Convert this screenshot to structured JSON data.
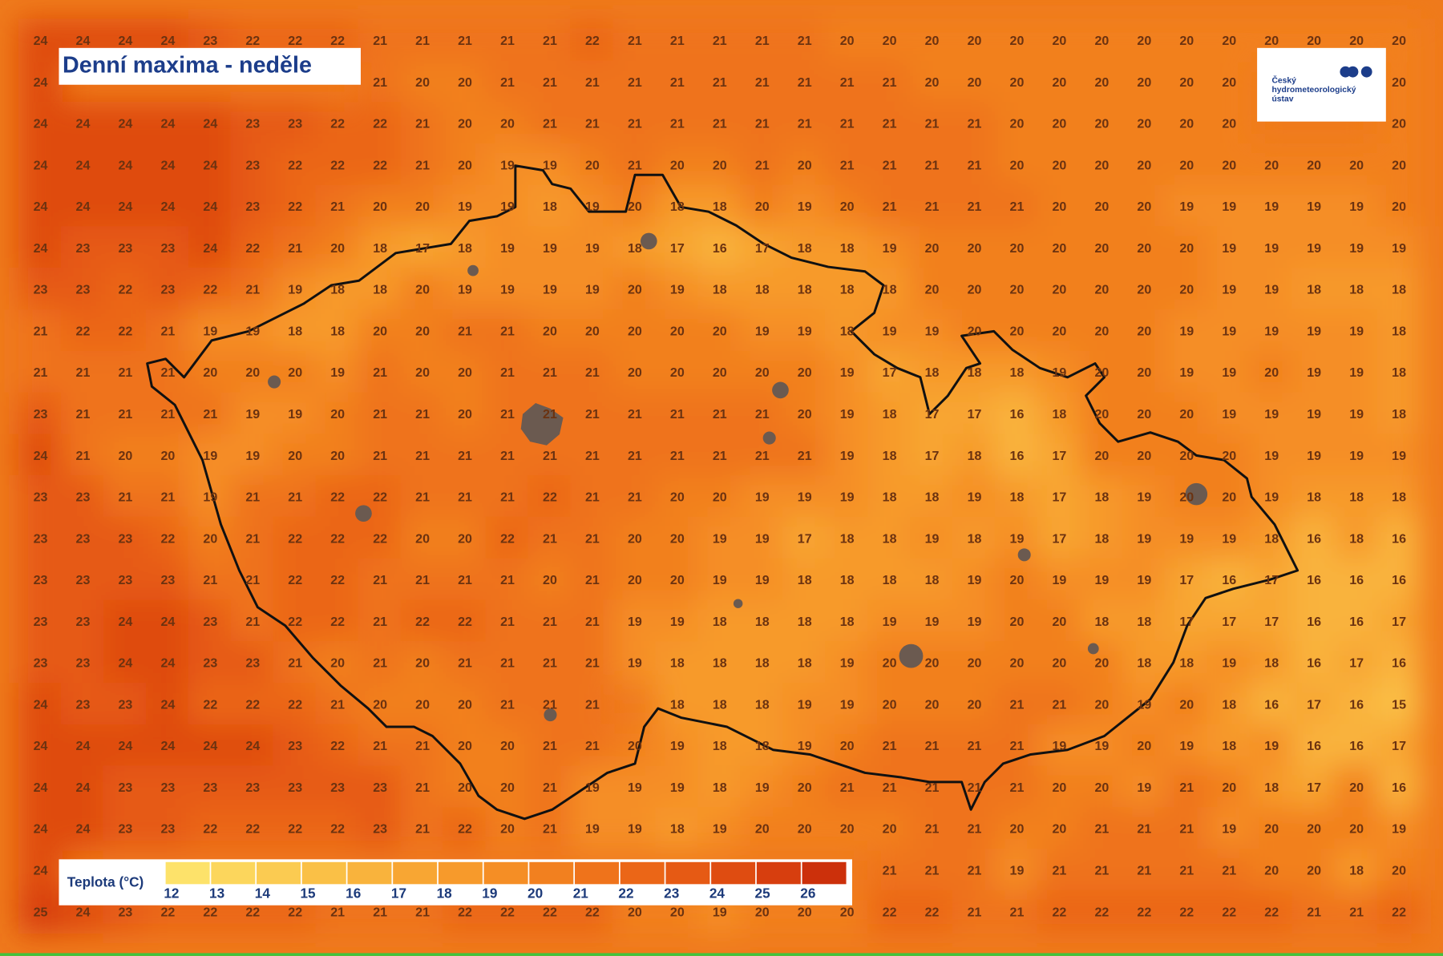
{
  "header": {
    "title": "Denní maxima - neděle"
  },
  "logo": {
    "lines": [
      "Český",
      "hydrometeorologický",
      "ústav"
    ]
  },
  "legend": {
    "label": "Teplota (°C)",
    "ticks": [
      12,
      13,
      14,
      15,
      16,
      17,
      18,
      19,
      20,
      21,
      22,
      23,
      24,
      25,
      26
    ],
    "colors": [
      "#fde26a",
      "#fcd65c",
      "#fbcb51",
      "#fac046",
      "#f9b33c",
      "#f8a633",
      "#f79a2b",
      "#f58e25",
      "#f2801f",
      "#ef731b",
      "#eb6617",
      "#e65a14",
      "#df4c11",
      "#d73e0e",
      "#cc300b"
    ]
  },
  "grid": {
    "rows": [
      [
        24,
        24,
        24,
        24,
        23,
        22,
        22,
        22,
        21,
        21,
        21,
        21,
        21,
        22,
        21,
        21,
        21,
        21,
        21,
        20,
        20,
        20,
        20,
        20,
        20,
        20,
        20,
        20,
        20,
        20,
        20,
        20,
        20
      ],
      [
        24,
        null,
        null,
        null,
        null,
        null,
        null,
        null,
        21,
        20,
        20,
        21,
        21,
        21,
        21,
        21,
        21,
        21,
        21,
        21,
        21,
        20,
        20,
        20,
        20,
        20,
        20,
        20,
        20,
        null,
        null,
        null,
        20
      ],
      [
        24,
        24,
        24,
        24,
        24,
        23,
        23,
        22,
        22,
        21,
        20,
        20,
        21,
        21,
        21,
        21,
        21,
        21,
        21,
        21,
        21,
        21,
        21,
        20,
        20,
        20,
        20,
        20,
        20,
        null,
        null,
        null,
        20
      ],
      [
        24,
        24,
        24,
        24,
        24,
        23,
        22,
        22,
        22,
        21,
        20,
        19,
        19,
        20,
        21,
        20,
        20,
        21,
        20,
        21,
        21,
        21,
        21,
        20,
        20,
        20,
        20,
        20,
        20,
        20,
        20,
        20,
        20
      ],
      [
        24,
        24,
        24,
        24,
        24,
        23,
        22,
        21,
        20,
        20,
        19,
        19,
        18,
        19,
        20,
        18,
        18,
        20,
        19,
        20,
        21,
        21,
        21,
        21,
        20,
        20,
        20,
        19,
        19,
        19,
        19,
        19,
        20
      ],
      [
        24,
        23,
        23,
        23,
        24,
        22,
        21,
        20,
        18,
        17,
        18,
        19,
        19,
        19,
        18,
        17,
        16,
        17,
        18,
        18,
        19,
        20,
        20,
        20,
        20,
        20,
        20,
        20,
        19,
        19,
        19,
        19,
        19
      ],
      [
        23,
        23,
        22,
        23,
        22,
        21,
        19,
        18,
        18,
        20,
        19,
        19,
        19,
        19,
        20,
        19,
        18,
        18,
        18,
        18,
        18,
        20,
        20,
        20,
        20,
        20,
        20,
        20,
        19,
        19,
        18,
        18,
        18
      ],
      [
        21,
        22,
        22,
        21,
        19,
        19,
        18,
        18,
        20,
        20,
        21,
        21,
        20,
        20,
        20,
        20,
        20,
        19,
        19,
        18,
        19,
        19,
        20,
        20,
        20,
        20,
        20,
        19,
        19,
        19,
        19,
        19,
        18
      ],
      [
        21,
        21,
        21,
        21,
        20,
        20,
        20,
        19,
        21,
        20,
        20,
        21,
        21,
        21,
        20,
        20,
        20,
        20,
        20,
        19,
        17,
        18,
        18,
        18,
        19,
        20,
        20,
        19,
        19,
        20,
        19,
        19,
        18
      ],
      [
        23,
        21,
        21,
        21,
        21,
        19,
        19,
        20,
        21,
        21,
        20,
        21,
        21,
        21,
        21,
        21,
        21,
        21,
        20,
        19,
        18,
        17,
        17,
        16,
        18,
        20,
        20,
        20,
        19,
        19,
        19,
        19,
        18
      ],
      [
        24,
        21,
        20,
        20,
        19,
        19,
        20,
        20,
        21,
        21,
        21,
        21,
        21,
        21,
        21,
        21,
        21,
        21,
        21,
        19,
        18,
        17,
        18,
        16,
        17,
        20,
        20,
        20,
        20,
        19,
        19,
        19,
        19
      ],
      [
        23,
        23,
        21,
        21,
        19,
        21,
        21,
        22,
        22,
        21,
        21,
        21,
        22,
        21,
        21,
        20,
        20,
        19,
        19,
        19,
        18,
        18,
        19,
        18,
        17,
        18,
        19,
        20,
        20,
        19,
        18,
        18,
        18
      ],
      [
        23,
        23,
        23,
        22,
        20,
        21,
        22,
        22,
        22,
        20,
        20,
        22,
        21,
        21,
        20,
        20,
        19,
        19,
        17,
        18,
        18,
        19,
        18,
        19,
        17,
        18,
        19,
        19,
        19,
        18,
        16,
        18,
        16
      ],
      [
        23,
        23,
        23,
        23,
        21,
        21,
        22,
        22,
        21,
        21,
        21,
        21,
        20,
        21,
        20,
        20,
        19,
        19,
        18,
        18,
        18,
        18,
        19,
        20,
        19,
        19,
        19,
        17,
        16,
        17,
        16,
        16,
        16
      ],
      [
        23,
        23,
        24,
        24,
        23,
        21,
        22,
        22,
        21,
        22,
        22,
        21,
        21,
        21,
        19,
        19,
        18,
        18,
        18,
        18,
        19,
        19,
        19,
        20,
        20,
        18,
        18,
        17,
        17,
        17,
        16,
        16,
        17
      ],
      [
        23,
        23,
        24,
        24,
        23,
        23,
        21,
        20,
        21,
        20,
        21,
        21,
        21,
        21,
        19,
        18,
        18,
        18,
        18,
        19,
        20,
        20,
        20,
        20,
        20,
        20,
        18,
        18,
        19,
        18,
        16,
        17,
        16
      ],
      [
        24,
        23,
        23,
        24,
        22,
        22,
        22,
        21,
        20,
        20,
        20,
        21,
        21,
        21,
        null,
        18,
        18,
        18,
        19,
        19,
        20,
        20,
        20,
        21,
        21,
        20,
        19,
        20,
        18,
        16,
        17,
        16,
        15
      ],
      [
        24,
        24,
        24,
        24,
        24,
        24,
        23,
        22,
        21,
        21,
        20,
        20,
        21,
        21,
        20,
        19,
        18,
        18,
        19,
        20,
        21,
        21,
        21,
        21,
        19,
        19,
        20,
        19,
        18,
        19,
        16,
        16,
        17
      ],
      [
        24,
        24,
        23,
        23,
        23,
        23,
        23,
        23,
        23,
        21,
        20,
        20,
        21,
        19,
        19,
        19,
        18,
        19,
        20,
        21,
        21,
        21,
        21,
        21,
        20,
        20,
        19,
        21,
        20,
        18,
        17,
        20,
        16
      ],
      [
        24,
        24,
        23,
        23,
        22,
        22,
        22,
        22,
        23,
        21,
        22,
        20,
        21,
        19,
        19,
        18,
        19,
        20,
        20,
        20,
        20,
        21,
        21,
        20,
        20,
        21,
        21,
        21,
        19,
        20,
        20,
        20,
        19
      ],
      [
        24,
        null,
        null,
        null,
        null,
        null,
        null,
        null,
        null,
        null,
        null,
        null,
        null,
        null,
        null,
        null,
        null,
        null,
        null,
        null,
        21,
        21,
        21,
        19,
        21,
        21,
        21,
        21,
        21,
        20,
        20,
        18,
        20
      ],
      [
        25,
        24,
        23,
        22,
        22,
        22,
        22,
        21,
        21,
        21,
        22,
        22,
        22,
        22,
        20,
        20,
        19,
        20,
        20,
        20,
        22,
        22,
        21,
        21,
        22,
        22,
        22,
        22,
        22,
        22,
        21,
        21,
        22
      ]
    ]
  }
}
